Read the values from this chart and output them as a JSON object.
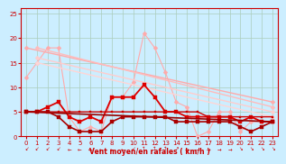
{
  "background_color": "#cceeff",
  "grid_color": "#aaccbb",
  "xlabel": "Vent moyen/en rafales ( km/h )",
  "xlabel_color": "#cc0000",
  "tick_color": "#cc0000",
  "xlim": [
    -0.5,
    23.5
  ],
  "ylim": [
    0,
    26
  ],
  "yticks": [
    0,
    5,
    10,
    15,
    20,
    25
  ],
  "xticks": [
    0,
    1,
    2,
    3,
    4,
    5,
    6,
    7,
    8,
    9,
    10,
    11,
    12,
    13,
    14,
    15,
    16,
    17,
    18,
    19,
    20,
    21,
    22,
    23
  ],
  "series": [
    {
      "comment": "light pink jagged line - peak at x=11 ~21, starts ~12",
      "x": [
        0,
        1,
        2,
        3,
        4,
        5,
        6,
        7,
        8,
        9,
        10,
        11,
        12,
        13,
        14,
        15,
        16,
        17,
        18,
        19,
        20,
        21,
        22,
        23
      ],
      "y": [
        12,
        15,
        18,
        18,
        4,
        1,
        2,
        1,
        8,
        8,
        11,
        21,
        18,
        13,
        7,
        6,
        0,
        1,
        5,
        5,
        1,
        3,
        3,
        3
      ],
      "color": "#ffaaaa",
      "lw": 0.8,
      "marker": "D",
      "ms": 2.5
    },
    {
      "comment": "diagonal line 1 - nearly straight from ~18 at x=0 to ~7 at x=23",
      "x": [
        0,
        23
      ],
      "y": [
        18,
        7
      ],
      "color": "#ffaaaa",
      "lw": 1.0,
      "marker": "D",
      "ms": 2.5
    },
    {
      "comment": "diagonal line 2 - from ~18 at x=1 to ~6 at x=23",
      "x": [
        1,
        23
      ],
      "y": [
        18,
        6
      ],
      "color": "#ffbbbb",
      "lw": 1.0,
      "marker": "D",
      "ms": 2.5
    },
    {
      "comment": "diagonal line 3 - from ~16 at x=1 to ~5 at x=23",
      "x": [
        1,
        23
      ],
      "y": [
        16,
        5
      ],
      "color": "#ffcccc",
      "lw": 1.0,
      "marker": "D",
      "ms": 2.5
    },
    {
      "comment": "diagonal line 4 - from ~15 at x=1 to ~5 at x=23",
      "x": [
        1,
        23
      ],
      "y": [
        15,
        4
      ],
      "color": "#ffd5d5",
      "lw": 1.0,
      "marker": "D",
      "ms": 2.5
    },
    {
      "comment": "dark red jagged line - peak at x=11 ~10.5",
      "x": [
        0,
        1,
        2,
        3,
        4,
        5,
        6,
        7,
        8,
        9,
        10,
        11,
        12,
        13,
        14,
        15,
        16,
        17,
        18,
        19,
        20,
        21,
        22,
        23
      ],
      "y": [
        5,
        5,
        6,
        7,
        4,
        3,
        4,
        3,
        8,
        8,
        8,
        10.5,
        8,
        5,
        5,
        4,
        4,
        4,
        4,
        4,
        3,
        4,
        3,
        3
      ],
      "color": "#dd0000",
      "lw": 1.3,
      "marker": "s",
      "ms": 2.5
    },
    {
      "comment": "dark red flat line ~5",
      "x": [
        0,
        1,
        2,
        3,
        4,
        5,
        6,
        7,
        8,
        9,
        10,
        11,
        12,
        13,
        14,
        15,
        16,
        17,
        18,
        19,
        20,
        21,
        22,
        23
      ],
      "y": [
        5,
        5,
        5,
        5,
        5,
        5,
        5,
        5,
        5,
        5,
        5,
        5,
        5,
        5,
        5,
        5,
        5,
        4,
        4,
        4,
        4,
        4,
        4,
        4
      ],
      "color": "#cc0000",
      "lw": 1.0,
      "marker": "s",
      "ms": 2.0
    },
    {
      "comment": "dark red diagonal going down slightly from 5 to 3",
      "x": [
        0,
        23
      ],
      "y": [
        5,
        3
      ],
      "color": "#990000",
      "lw": 1.2,
      "marker": "None",
      "ms": 0
    },
    {
      "comment": "dark red bottom jagged line - dips to 0-2",
      "x": [
        0,
        1,
        2,
        3,
        4,
        5,
        6,
        7,
        8,
        9,
        10,
        11,
        12,
        13,
        14,
        15,
        16,
        17,
        18,
        19,
        20,
        21,
        22,
        23
      ],
      "y": [
        5,
        5,
        5,
        4,
        2,
        1,
        1,
        1,
        3,
        4,
        4,
        4,
        4,
        4,
        3,
        3,
        3,
        3,
        3,
        3,
        2,
        1,
        2,
        3
      ],
      "color": "#aa0000",
      "lw": 1.2,
      "marker": "s",
      "ms": 2.5
    }
  ],
  "wind_chars": [
    "↙",
    "↙",
    "↙",
    "↙",
    "←",
    "←",
    "←",
    "←",
    "←",
    "←",
    "↙",
    "↑",
    "↑",
    "↑",
    "↗",
    "→",
    "→",
    "→",
    "→",
    "→",
    "↘",
    "↘",
    "↘",
    "↘"
  ],
  "arrow_color": "#cc0000"
}
